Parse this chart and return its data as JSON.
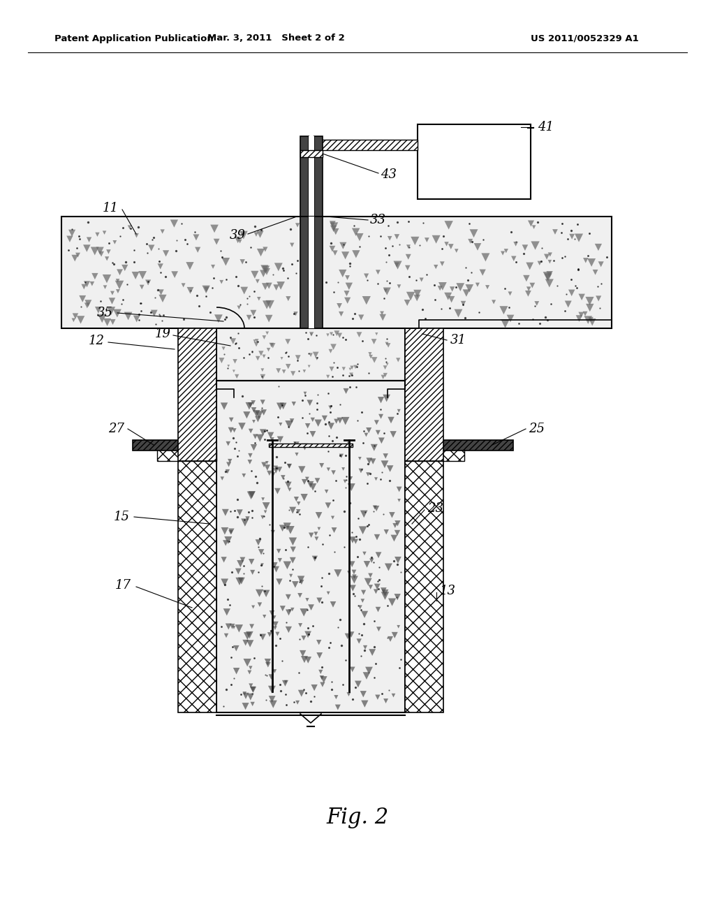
{
  "bg_color": "#ffffff",
  "header_left": "Patent Application Publication",
  "header_center": "Mar. 3, 2011   Sheet 2 of 2",
  "header_right": "US 2011/0052329 A1",
  "fig_label": "Fig. 2",
  "concrete_fill": "#f0f0f0",
  "concrete_dark": "#d0d0d0",
  "dark_gray": "#444444",
  "mid_gray": "#888888"
}
